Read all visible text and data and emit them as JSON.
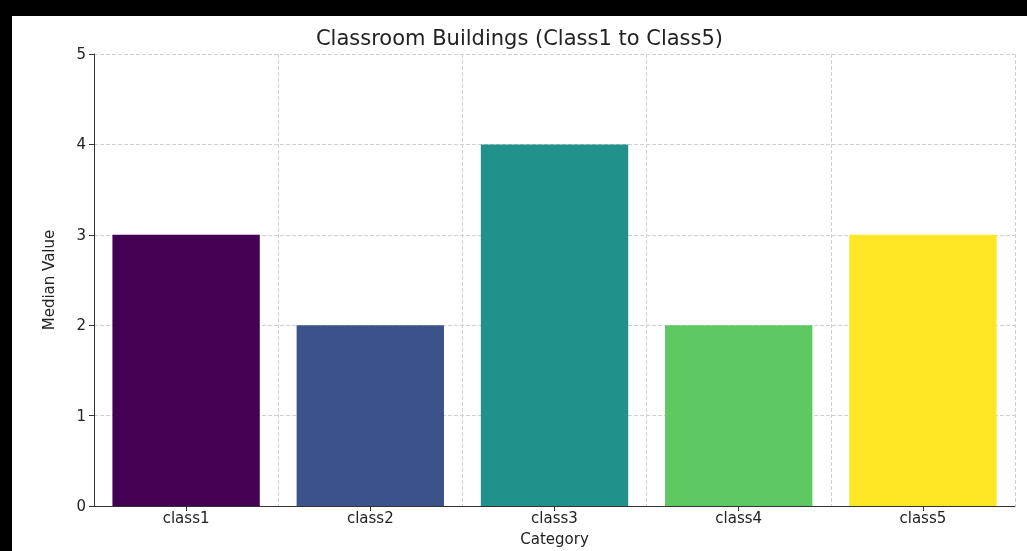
{
  "chart_data": {
    "type": "bar",
    "title": "Classroom Buildings (Class1 to Class5)",
    "xlabel": "Category",
    "ylabel": "Median Value",
    "categories": [
      "class1",
      "class2",
      "class3",
      "class4",
      "class5"
    ],
    "values": [
      3,
      2,
      4,
      2,
      3
    ],
    "colors": [
      "#440154",
      "#3b528b",
      "#21918c",
      "#5ec962",
      "#fde725"
    ],
    "ylim": [
      0,
      5
    ],
    "yticks": [
      0,
      1,
      2,
      3,
      4,
      5
    ],
    "grid": true
  }
}
